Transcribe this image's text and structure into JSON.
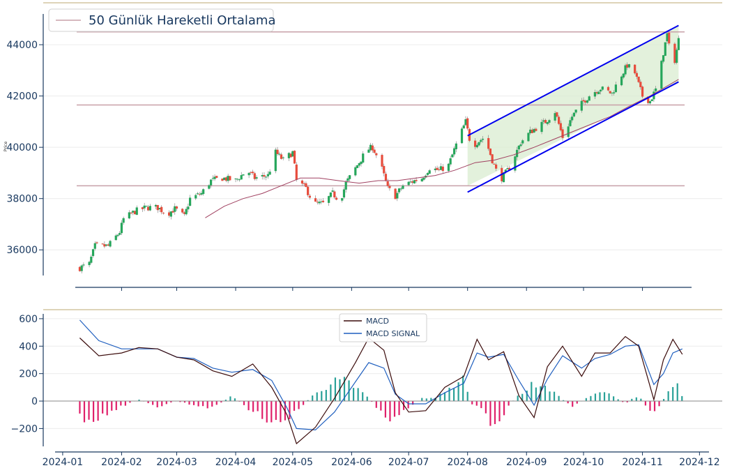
{
  "chart_data": [
    {
      "type": "candlestick",
      "ylabel": "Price",
      "ylim": [
        35000,
        45200
      ],
      "yticks": [
        36000,
        38000,
        40000,
        42000,
        44000
      ],
      "grid": "horizontal",
      "legend": {
        "placement": "top-left",
        "entries": [
          "50 Günlük Hareketli Ortalama"
        ]
      },
      "colors": {
        "up": "#26a65b",
        "down": "#e74c3c",
        "ma": "#a04060",
        "support_line": "#c8a0a8",
        "channel": "#0000ee",
        "channel_fill": "#d9ecd0",
        "axis": "#17375e"
      },
      "horizontal_levels": [
        38500,
        41650,
        44500
      ],
      "channel": {
        "upper": [
          [
            "2024-08-01",
            40450
          ],
          [
            "2024-11-20",
            44750
          ]
        ],
        "lower": [
          [
            "2024-08-01",
            38250
          ],
          [
            "2024-11-20",
            42550
          ]
        ],
        "band_start": "2024-08-01",
        "band_bottom_at_start": 38500
      },
      "close_path": [
        [
          "2024-01-10",
          35300
        ],
        [
          "2024-01-15",
          35450
        ],
        [
          "2024-01-18",
          36150
        ],
        [
          "2024-01-25",
          36150
        ],
        [
          "2024-01-31",
          36700
        ],
        [
          "2024-02-02",
          37200
        ],
        [
          "2024-02-08",
          37500
        ],
        [
          "2024-02-14",
          37650
        ],
        [
          "2024-02-20",
          37650
        ],
        [
          "2024-02-25",
          37400
        ],
        [
          "2024-02-29",
          37600
        ],
        [
          "2024-03-05",
          37300
        ],
        [
          "2024-03-08",
          38000
        ],
        [
          "2024-03-14",
          38200
        ],
        [
          "2024-03-19",
          38700
        ],
        [
          "2024-03-25",
          38800
        ],
        [
          "2024-04-01",
          38700
        ],
        [
          "2024-04-07",
          39100
        ],
        [
          "2024-04-11",
          38800
        ],
        [
          "2024-04-18",
          38900
        ],
        [
          "2024-04-22",
          39800
        ],
        [
          "2024-04-26",
          39500
        ],
        [
          "2024-05-01",
          39800
        ],
        [
          "2024-05-03",
          38700
        ],
        [
          "2024-05-08",
          38400
        ],
        [
          "2024-05-12",
          37800
        ],
        [
          "2024-05-17",
          37800
        ],
        [
          "2024-05-22",
          38200
        ],
        [
          "2024-05-26",
          37900
        ],
        [
          "2024-05-29",
          38600
        ],
        [
          "2024-06-04",
          39300
        ],
        [
          "2024-06-09",
          39900
        ],
        [
          "2024-06-12",
          40000
        ],
        [
          "2024-06-16",
          39400
        ],
        [
          "2024-06-20",
          38400
        ],
        [
          "2024-06-24",
          38100
        ],
        [
          "2024-06-28",
          38500
        ],
        [
          "2024-07-04",
          38700
        ],
        [
          "2024-07-08",
          38800
        ],
        [
          "2024-07-12",
          39200
        ],
        [
          "2024-07-17",
          39100
        ],
        [
          "2024-07-22",
          39300
        ],
        [
          "2024-07-26",
          40100
        ],
        [
          "2024-07-31",
          41000
        ],
        [
          "2024-08-03",
          40000
        ],
        [
          "2024-08-06",
          40200
        ],
        [
          "2024-08-10",
          40400
        ],
        [
          "2024-08-14",
          39500
        ],
        [
          "2024-08-18",
          38700
        ],
        [
          "2024-08-23",
          39200
        ],
        [
          "2024-08-29",
          40200
        ],
        [
          "2024-09-03",
          40600
        ],
        [
          "2024-09-07",
          40800
        ],
        [
          "2024-09-11",
          41000
        ],
        [
          "2024-09-16",
          41400
        ],
        [
          "2024-09-20",
          40400
        ],
        [
          "2024-09-25",
          41200
        ],
        [
          "2024-09-30",
          41700
        ],
        [
          "2024-10-05",
          42100
        ],
        [
          "2024-10-10",
          42300
        ],
        [
          "2024-10-16",
          42100
        ],
        [
          "2024-10-20",
          42700
        ],
        [
          "2024-10-24",
          43200
        ],
        [
          "2024-10-28",
          42900
        ],
        [
          "2024-11-01",
          42000
        ],
        [
          "2024-11-05",
          41800
        ],
        [
          "2024-11-09",
          42400
        ],
        [
          "2024-11-12",
          43700
        ],
        [
          "2024-11-14",
          44400
        ],
        [
          "2024-11-17",
          43000
        ],
        [
          "2024-11-20",
          44200
        ]
      ],
      "ma50": [
        [
          "2024-03-16",
          37250
        ],
        [
          "2024-03-26",
          37700
        ],
        [
          "2024-04-05",
          38000
        ],
        [
          "2024-04-15",
          38200
        ],
        [
          "2024-04-25",
          38500
        ],
        [
          "2024-05-05",
          38800
        ],
        [
          "2024-05-15",
          38800
        ],
        [
          "2024-05-25",
          38700
        ],
        [
          "2024-06-05",
          38600
        ],
        [
          "2024-06-15",
          38700
        ],
        [
          "2024-06-25",
          38700
        ],
        [
          "2024-07-05",
          38800
        ],
        [
          "2024-07-15",
          38900
        ],
        [
          "2024-07-25",
          39100
        ],
        [
          "2024-08-05",
          39400
        ],
        [
          "2024-08-15",
          39500
        ],
        [
          "2024-08-25",
          39700
        ],
        [
          "2024-09-05",
          40000
        ],
        [
          "2024-09-15",
          40300
        ],
        [
          "2024-09-25",
          40600
        ],
        [
          "2024-10-05",
          40900
        ],
        [
          "2024-10-15",
          41200
        ],
        [
          "2024-10-25",
          41600
        ],
        [
          "2024-11-05",
          42000
        ],
        [
          "2024-11-20",
          42650
        ]
      ]
    },
    {
      "type": "line+bar",
      "ylim": [
        -330,
        620
      ],
      "yticks": [
        -200,
        0,
        200,
        400,
        600
      ],
      "legend": {
        "placement": "top-center",
        "entries": [
          "MACD",
          "MACD SIGNAL"
        ]
      },
      "colors": {
        "macd": "#3a0a0a",
        "signal": "#1f5fbf",
        "hist_pos": "#2aa198",
        "hist_neg": "#e0206a",
        "zero": "#888888"
      },
      "series": [
        {
          "name": "MACD",
          "values": [
            [
              "2024-01-10",
              460
            ],
            [
              "2024-01-20",
              330
            ],
            [
              "2024-02-01",
              350
            ],
            [
              "2024-02-10",
              390
            ],
            [
              "2024-02-20",
              380
            ],
            [
              "2024-03-01",
              320
            ],
            [
              "2024-03-10",
              300
            ],
            [
              "2024-03-20",
              220
            ],
            [
              "2024-03-30",
              180
            ],
            [
              "2024-04-10",
              270
            ],
            [
              "2024-04-20",
              100
            ],
            [
              "2024-04-28",
              -100
            ],
            [
              "2024-05-03",
              -310
            ],
            [
              "2024-05-13",
              -190
            ],
            [
              "2024-05-23",
              20
            ],
            [
              "2024-06-03",
              280
            ],
            [
              "2024-06-10",
              460
            ],
            [
              "2024-06-18",
              370
            ],
            [
              "2024-06-24",
              60
            ],
            [
              "2024-07-01",
              -80
            ],
            [
              "2024-07-10",
              -70
            ],
            [
              "2024-07-20",
              100
            ],
            [
              "2024-07-30",
              180
            ],
            [
              "2024-08-06",
              450
            ],
            [
              "2024-08-12",
              300
            ],
            [
              "2024-08-20",
              360
            ],
            [
              "2024-08-28",
              40
            ],
            [
              "2024-09-05",
              -120
            ],
            [
              "2024-09-12",
              250
            ],
            [
              "2024-09-20",
              400
            ],
            [
              "2024-09-30",
              180
            ],
            [
              "2024-10-07",
              350
            ],
            [
              "2024-10-15",
              350
            ],
            [
              "2024-10-23",
              470
            ],
            [
              "2024-10-30",
              400
            ],
            [
              "2024-11-07",
              10
            ],
            [
              "2024-11-12",
              300
            ],
            [
              "2024-11-17",
              450
            ],
            [
              "2024-11-22",
              340
            ]
          ]
        },
        {
          "name": "MACD SIGNAL",
          "values": [
            [
              "2024-01-10",
              590
            ],
            [
              "2024-01-20",
              440
            ],
            [
              "2024-02-01",
              380
            ],
            [
              "2024-02-10",
              380
            ],
            [
              "2024-02-20",
              380
            ],
            [
              "2024-03-01",
              320
            ],
            [
              "2024-03-10",
              310
            ],
            [
              "2024-03-20",
              240
            ],
            [
              "2024-03-30",
              210
            ],
            [
              "2024-04-10",
              230
            ],
            [
              "2024-04-20",
              150
            ],
            [
              "2024-04-28",
              -50
            ],
            [
              "2024-05-03",
              -200
            ],
            [
              "2024-05-13",
              -210
            ],
            [
              "2024-05-23",
              -80
            ],
            [
              "2024-06-03",
              140
            ],
            [
              "2024-06-10",
              280
            ],
            [
              "2024-06-18",
              240
            ],
            [
              "2024-06-24",
              50
            ],
            [
              "2024-07-01",
              -20
            ],
            [
              "2024-07-10",
              -20
            ],
            [
              "2024-07-20",
              60
            ],
            [
              "2024-07-30",
              130
            ],
            [
              "2024-08-06",
              350
            ],
            [
              "2024-08-12",
              320
            ],
            [
              "2024-08-20",
              340
            ],
            [
              "2024-08-28",
              150
            ],
            [
              "2024-09-05",
              -30
            ],
            [
              "2024-09-12",
              160
            ],
            [
              "2024-09-20",
              330
            ],
            [
              "2024-09-30",
              240
            ],
            [
              "2024-10-07",
              310
            ],
            [
              "2024-10-15",
              340
            ],
            [
              "2024-10-23",
              400
            ],
            [
              "2024-10-30",
              410
            ],
            [
              "2024-11-07",
              120
            ],
            [
              "2024-11-12",
              200
            ],
            [
              "2024-11-17",
              350
            ],
            [
              "2024-11-22",
              380
            ]
          ]
        }
      ],
      "histogram": [
        [
          "2024-01-10",
          -130
        ],
        [
          "2024-01-20",
          -140
        ],
        [
          "2024-01-30",
          -50
        ],
        [
          "2024-02-10",
          10
        ],
        [
          "2024-02-20",
          -40
        ],
        [
          "2024-03-01",
          0
        ],
        [
          "2024-03-10",
          -30
        ],
        [
          "2024-03-20",
          -50
        ],
        [
          "2024-03-30",
          40
        ],
        [
          "2024-04-10",
          -80
        ],
        [
          "2024-04-18",
          -150
        ],
        [
          "2024-04-25",
          -170
        ],
        [
          "2024-05-03",
          -80
        ],
        [
          "2024-05-10",
          20
        ],
        [
          "2024-05-18",
          100
        ],
        [
          "2024-05-25",
          170
        ],
        [
          "2024-06-01",
          120
        ],
        [
          "2024-06-08",
          50
        ],
        [
          "2024-06-15",
          -60
        ],
        [
          "2024-06-22",
          -140
        ],
        [
          "2024-06-30",
          -70
        ],
        [
          "2024-07-07",
          20
        ],
        [
          "2024-07-15",
          30
        ],
        [
          "2024-07-22",
          80
        ],
        [
          "2024-07-30",
          170
        ],
        [
          "2024-08-03",
          -20
        ],
        [
          "2024-08-10",
          -60
        ],
        [
          "2024-08-14",
          -200
        ],
        [
          "2024-08-20",
          -90
        ],
        [
          "2024-08-27",
          40
        ],
        [
          "2024-09-03",
          120
        ],
        [
          "2024-09-10",
          100
        ],
        [
          "2024-09-18",
          40
        ],
        [
          "2024-09-25",
          -50
        ],
        [
          "2024-10-02",
          20
        ],
        [
          "2024-10-09",
          80
        ],
        [
          "2024-10-16",
          40
        ],
        [
          "2024-10-23",
          -20
        ],
        [
          "2024-10-30",
          50
        ],
        [
          "2024-11-06",
          -120
        ],
        [
          "2024-11-10",
          -40
        ],
        [
          "2024-11-14",
          60
        ],
        [
          "2024-11-18",
          160
        ],
        [
          "2024-11-22",
          30
        ]
      ]
    }
  ],
  "x_axis": {
    "range": [
      "2023-12-28",
      "2024-12-06"
    ],
    "ticks": [
      [
        "2024-01-01",
        "2024-01"
      ],
      [
        "2024-02-01",
        "2024-02"
      ],
      [
        "2024-03-01",
        "2024-03"
      ],
      [
        "2024-04-01",
        "2024-04"
      ],
      [
        "2024-05-01",
        "2024-05"
      ],
      [
        "2024-06-01",
        "2024-06"
      ],
      [
        "2024-07-01",
        "2024-07"
      ],
      [
        "2024-08-01",
        "2024-08"
      ],
      [
        "2024-09-01",
        "2024-09"
      ],
      [
        "2024-10-01",
        "2024-10"
      ],
      [
        "2024-11-01",
        "2024-11"
      ],
      [
        "2024-12-01",
        "2024-12"
      ]
    ]
  }
}
